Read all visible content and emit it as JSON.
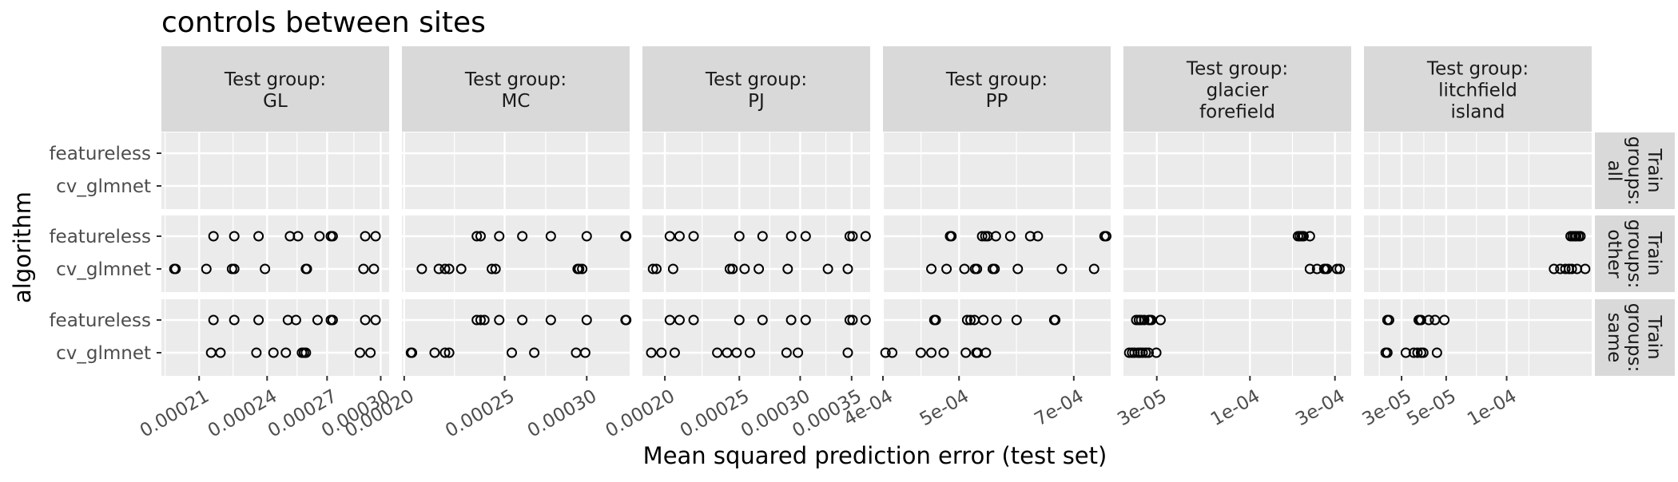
{
  "chart_data": {
    "type": "scatter",
    "title": "controls between sites",
    "xlabel": "Mean squared prediction error (test set)",
    "ylabel": "algorithm",
    "y_categories": [
      "featureless",
      "cv_glmnet"
    ],
    "grid": true,
    "facet_columns": [
      {
        "label": "Test group:\nGL",
        "x_scale": "log",
        "xlim": [
          0.000195,
          0.000305
        ],
        "ticks": [
          0.00021,
          0.00024,
          0.00027,
          0.0003
        ],
        "tick_labels": [
          "0.00021",
          "0.00024",
          "0.00027",
          "0.00030"
        ]
      },
      {
        "label": "Test group:\nMC",
        "x_scale": "log",
        "xlim": [
          0.000199,
          0.00033
        ],
        "ticks": [
          0.0002,
          0.00025,
          0.0003
        ],
        "tick_labels": [
          "0.00020",
          "0.00025",
          "0.00030"
        ]
      },
      {
        "label": "Test group:\nPJ",
        "x_scale": "log",
        "xlim": [
          0.000187,
          0.00037
        ],
        "ticks": [
          0.0002,
          0.00025,
          0.0003,
          0.00035
        ],
        "tick_labels": [
          "0.00020",
          "0.00025",
          "0.00030",
          "0.00035"
        ]
      },
      {
        "label": "Test group:\nPP",
        "x_scale": "log",
        "xlim": [
          0.0004,
          0.00078
        ],
        "ticks": [
          0.0004,
          0.0005,
          0.0007
        ],
        "tick_labels": [
          "4e-04",
          "5e-04",
          "7e-04"
        ]
      },
      {
        "label": "Test group:\nglacier\nforefield",
        "x_scale": "log",
        "xlim": [
          1.95e-05,
          0.00037
        ],
        "ticks": [
          3e-05,
          0.0001,
          0.0003
        ],
        "tick_labels": [
          "3e-05",
          "1e-04",
          "3e-04"
        ]
      },
      {
        "label": "Test group:\nlitchfield\nisland",
        "x_scale": "log",
        "xlim": [
          1.95e-05,
          0.000265
        ],
        "ticks": [
          3e-05,
          5e-05,
          0.0001
        ],
        "tick_labels": [
          "3e-05",
          "5e-05",
          "1e-04"
        ]
      }
    ],
    "facet_rows": [
      {
        "label": "Train\ngroups:\nall"
      },
      {
        "label": "Train\ngroups:\nother"
      },
      {
        "label": "Train\ngroups:\nsame"
      }
    ],
    "panels": [
      [
        {
          "featureless": [],
          "cv_glmnet": []
        },
        {
          "featureless": [
            0.000216,
            0.000225,
            0.000236,
            0.000251,
            0.000255,
            0.000266,
            0.000272,
            0.000273,
            0.000291,
            0.000297
          ],
          "cv_glmnet": [
            0.0002,
            0.0002005,
            0.000213,
            0.000224,
            0.000225,
            0.000239,
            0.000259,
            0.0002595,
            0.00029,
            0.000296
          ]
        },
        {
          "featureless": [
            0.000216,
            0.000225,
            0.000236,
            0.00025,
            0.000254,
            0.000265,
            0.000272,
            0.000273,
            0.000291,
            0.000297
          ],
          "cv_glmnet": [
            0.000215,
            0.000219,
            0.000235,
            0.000243,
            0.000249,
            0.000257,
            0.000258,
            0.000259,
            0.000288,
            0.000294
          ]
        }
      ],
      [
        {
          "featureless": [],
          "cv_glmnet": []
        },
        {
          "featureless": [
            0.000235,
            0.000237,
            0.000247,
            0.00026,
            0.000277,
            0.0003,
            0.000327,
            0.0003275
          ],
          "cv_glmnet": [
            0.000208,
            0.000216,
            0.000219,
            0.000221,
            0.000227,
            0.000243,
            0.000245,
            0.000294,
            0.000295,
            0.000297
          ]
        },
        {
          "featureless": [
            0.000235,
            0.000237,
            0.000239,
            0.000247,
            0.00026,
            0.000277,
            0.0003,
            0.000327,
            0.0003275
          ],
          "cv_glmnet": [
            0.000203,
            0.0002035,
            0.000214,
            0.000219,
            0.000221,
            0.000254,
            0.000267,
            0.000293,
            0.000299
          ]
        }
      ],
      [
        {
          "featureless": [],
          "cv_glmnet": []
        },
        {
          "featureless": [
            0.000203,
            0.000209,
            0.000218,
            0.00025,
            0.000268,
            0.000292,
            0.000305,
            0.000348,
            0.000351,
            0.000365
          ],
          "cv_glmnet": [
            0.000193,
            0.000195,
            0.000205,
            0.000243,
            0.000245,
            0.000254,
            0.000265,
            0.000289,
            0.000326,
            0.000346
          ]
        },
        {
          "featureless": [
            0.000203,
            0.000209,
            0.000218,
            0.00025,
            0.000268,
            0.000292,
            0.000305,
            0.000348,
            0.000351,
            0.000365
          ],
          "cv_glmnet": [
            0.000192,
            0.000198,
            0.000206,
            0.000234,
            0.000241,
            0.000248,
            0.000258,
            0.000288,
            0.000298,
            0.000346
          ]
        }
      ],
      [
        {
          "featureless": [],
          "cv_glmnet": []
        },
        {
          "featureless": [
            0.000487,
            0.000489,
            0.000535,
            0.00054,
            0.000544,
            0.000557,
            0.000581,
            0.000616,
            0.00063,
            0.000766,
            0.00077
          ],
          "cv_glmnet": [
            0.000461,
            0.000482,
            0.000508,
            0.000524,
            0.000527,
            0.000552,
            0.000555,
            0.000594,
            0.000676,
            0.000743
          ]
        },
        {
          "featureless": [
            0.000465,
            0.000467,
            0.000512,
            0.000517,
            0.000523,
            0.000537,
            0.000558,
            0.000592,
            0.000661,
            0.000663
          ],
          "cv_glmnet": [
            0.000403,
            0.000411,
            0.000447,
            0.000461,
            0.000478,
            0.00051,
            0.000526,
            0.000528,
            0.000541
          ]
        }
      ],
      [
        {
          "featureless": [],
          "cv_glmnet": []
        },
        {
          "featureless": [
            0.000186,
            0.000191,
            0.000196,
            0.0002,
            0.000217
          ],
          "cv_glmnet": [
            0.000217,
            0.000238,
            0.000261,
            0.000265,
            0.000271,
            0.000308,
            0.000319
          ]
        },
        {
          "featureless": [
            2.3e-05,
            2.38e-05,
            2.45e-05,
            2.55e-05,
            2.7e-05,
            2.75e-05,
            2.8e-05,
            3.15e-05
          ],
          "cv_glmnet": [
            2.1e-05,
            2.18e-05,
            2.25e-05,
            2.35e-05,
            2.42e-05,
            2.5e-05,
            2.6e-05,
            2.7e-05,
            2.98e-05
          ]
        }
      ],
      [
        {
          "featureless": [],
          "cv_glmnet": []
        },
        {
          "featureless": [
            0.000208,
            0.000213,
            0.000218,
            0.000222,
            0.000228,
            0.000233
          ],
          "cv_glmnet": [
            0.000172,
            0.000185,
            0.000196,
            0.000204,
            0.000211,
            0.000224,
            0.000246
          ]
        },
        {
          "featureless": [
            2.55e-05,
            2.6e-05,
            3.65e-05,
            3.7e-05,
            3.75e-05,
            4.1e-05,
            4.4e-05,
            4.9e-05
          ],
          "cv_glmnet": [
            2.5e-05,
            2.55e-05,
            3.15e-05,
            3.45e-05,
            3.6e-05,
            3.75e-05,
            3.85e-05,
            4.5e-05
          ]
        }
      ]
    ]
  }
}
